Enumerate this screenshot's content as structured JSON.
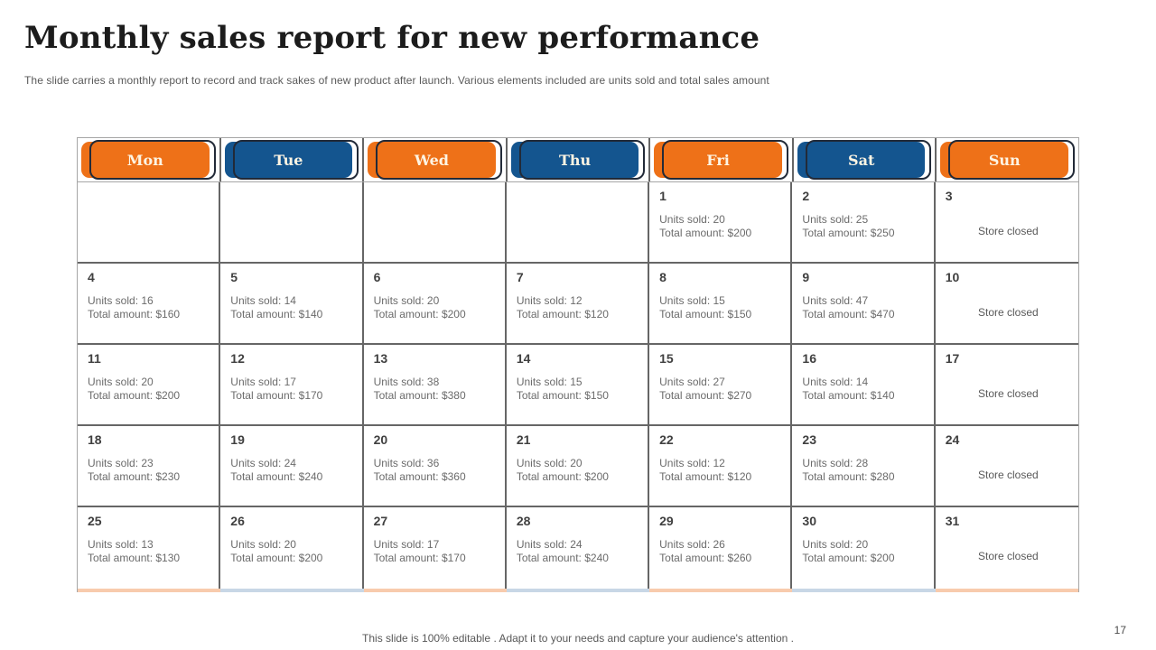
{
  "slide": {
    "title": "Monthly sales report for new performance",
    "subtitle": "The slide carries a monthly report to record and track sakes of new product after launch. Various elements included are units sold and total sales amount",
    "footer": "This slide is 100% editable . Adapt it to your needs and capture your audience's attention .",
    "page_number": "17"
  },
  "labels": {
    "units_sold": "Units sold:",
    "total_amount": "Total amount:",
    "store_closed": "Store closed"
  },
  "colors": {
    "orange": "#ee7118",
    "blue": "#14558f",
    "badge_outline": "#222a38",
    "badge_text": "#fdf4e3",
    "grid_line": "#666666",
    "outer_border": "#a6a6a6",
    "bottom_orange": "#f8cbad",
    "bottom_blue": "#c8d7e6",
    "title_text": "#1c1c1c",
    "detail_text": "#6b6b6b"
  },
  "calendar": {
    "weekdays": [
      {
        "label": "Mon",
        "scheme": "orange"
      },
      {
        "label": "Tue",
        "scheme": "blue"
      },
      {
        "label": "Wed",
        "scheme": "orange"
      },
      {
        "label": "Thu",
        "scheme": "blue"
      },
      {
        "label": "Fri",
        "scheme": "orange"
      },
      {
        "label": "Sat",
        "scheme": "blue"
      },
      {
        "label": "Sun",
        "scheme": "orange"
      }
    ],
    "weeks": [
      [
        null,
        null,
        null,
        null,
        {
          "day": "1",
          "units": "20",
          "amount": "$200"
        },
        {
          "day": "2",
          "units": "25",
          "amount": "$250"
        },
        {
          "day": "3",
          "closed": true
        }
      ],
      [
        {
          "day": "4",
          "units": "16",
          "amount": "$160"
        },
        {
          "day": "5",
          "units": "14",
          "amount": "$140"
        },
        {
          "day": "6",
          "units": "20",
          "amount": "$200"
        },
        {
          "day": "7",
          "units": "12",
          "amount": "$120"
        },
        {
          "day": "8",
          "units": "15",
          "amount": "$150"
        },
        {
          "day": "9",
          "units": "47",
          "amount": "$470"
        },
        {
          "day": "10",
          "closed": true
        }
      ],
      [
        {
          "day": "11",
          "units": "20",
          "amount": "$200"
        },
        {
          "day": "12",
          "units": "17",
          "amount": "$170"
        },
        {
          "day": "13",
          "units": "38",
          "amount": "$380"
        },
        {
          "day": "14",
          "units": "15",
          "amount": "$150"
        },
        {
          "day": "15",
          "units": "27",
          "amount": "$270"
        },
        {
          "day": "16",
          "units": "14",
          "amount": "$140"
        },
        {
          "day": "17",
          "closed": true
        }
      ],
      [
        {
          "day": "18",
          "units": "23",
          "amount": "$230"
        },
        {
          "day": "19",
          "units": "24",
          "amount": "$240"
        },
        {
          "day": "20",
          "units": "36",
          "amount": "$360"
        },
        {
          "day": "21",
          "units": "20",
          "amount": "$200"
        },
        {
          "day": "22",
          "units": "12",
          "amount": "$120"
        },
        {
          "day": "23",
          "units": "28",
          "amount": "$280"
        },
        {
          "day": "24",
          "closed": true
        }
      ],
      [
        {
          "day": "25",
          "units": "13",
          "amount": "$130"
        },
        {
          "day": "26",
          "units": "20",
          "amount": "$200"
        },
        {
          "day": "27",
          "units": "17",
          "amount": "$170"
        },
        {
          "day": "28",
          "units": "24",
          "amount": "$240"
        },
        {
          "day": "29",
          "units": "26",
          "amount": "$260"
        },
        {
          "day": "30",
          "units": "20",
          "amount": "$200"
        },
        {
          "day": "31",
          "closed": true
        }
      ]
    ]
  }
}
